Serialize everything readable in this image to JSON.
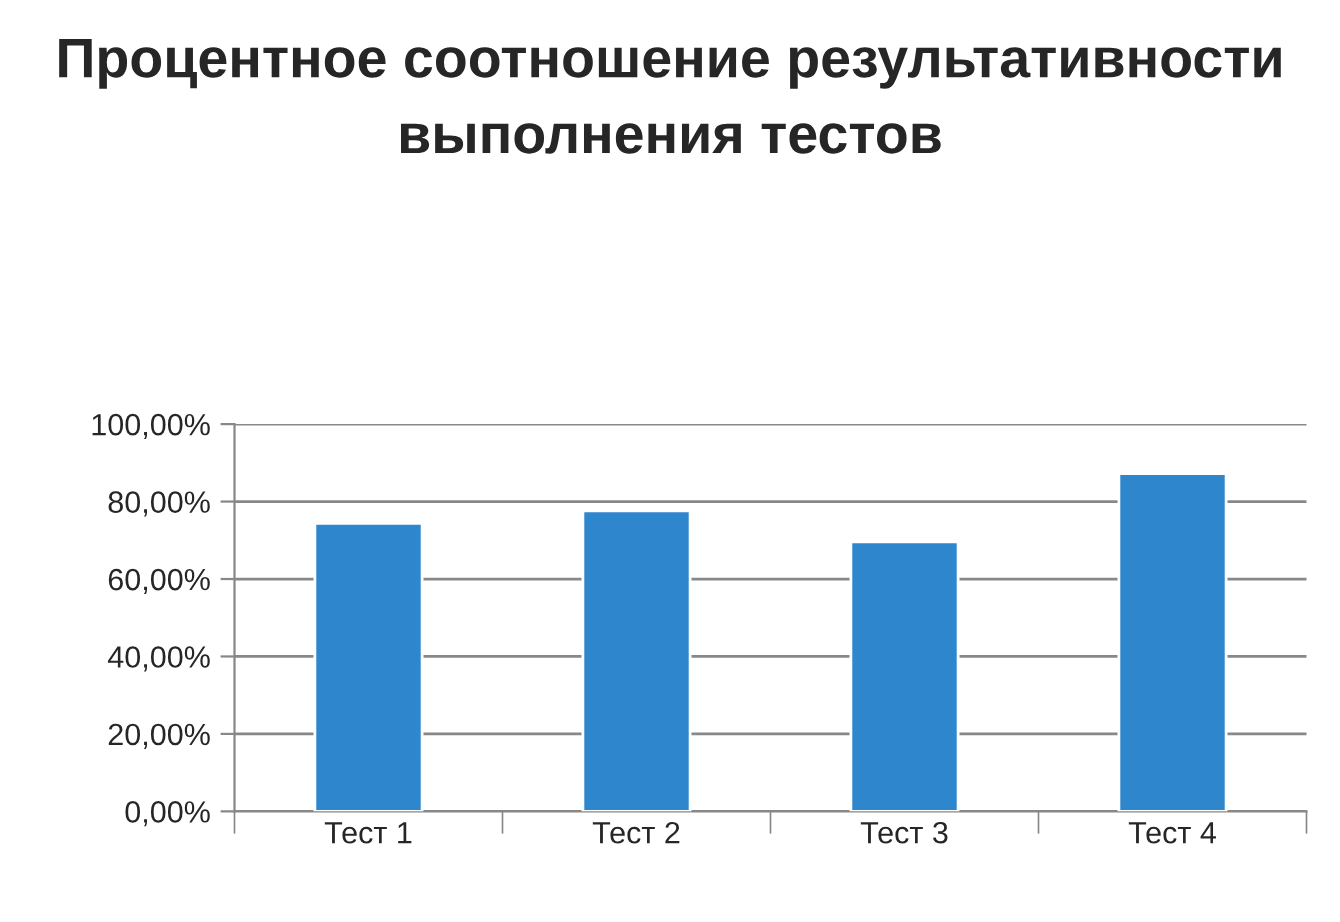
{
  "chart_data": {
    "type": "bar",
    "title": "Процентное соотношение результативности выполнения тестов",
    "categories": [
      "Тест 1",
      "Тест 2",
      "Тест 3",
      "Тест 4"
    ],
    "values": [
      74.4,
      77.6,
      69.6,
      87.2
    ],
    "color": "#2e86cc",
    "ylim": [
      0,
      100
    ],
    "yticks": [
      {
        "value": 0,
        "label": "0,00%"
      },
      {
        "value": 20,
        "label": "20,00%"
      },
      {
        "value": 40,
        "label": "40,00%"
      },
      {
        "value": 60,
        "label": "60,00%"
      },
      {
        "value": 80,
        "label": "80,00%"
      },
      {
        "value": 100,
        "label": "100,00%"
      }
    ],
    "grid": "y",
    "legend": false
  }
}
